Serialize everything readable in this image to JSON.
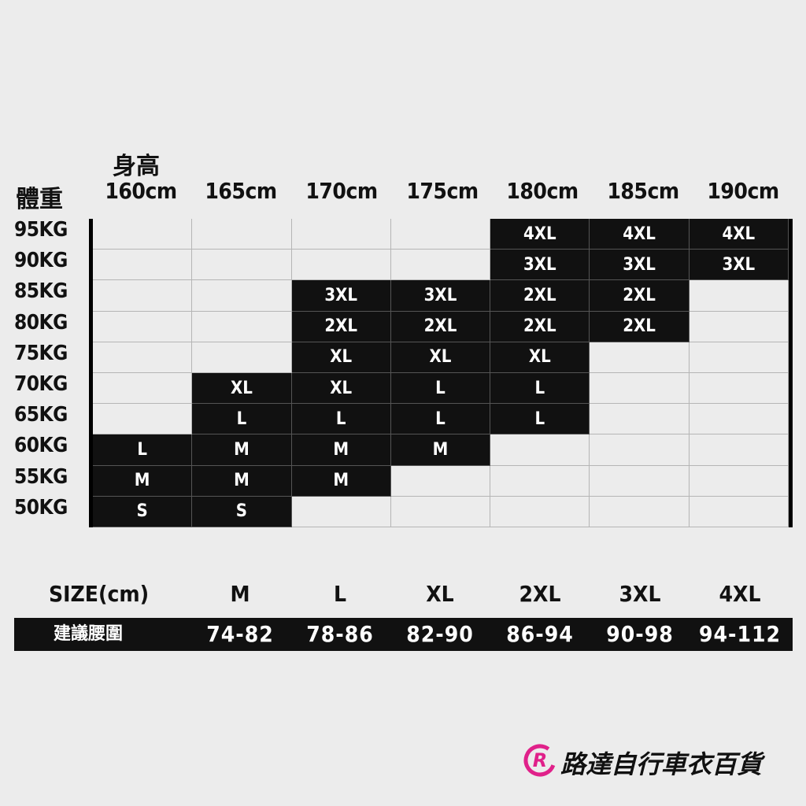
{
  "height_label": "身高",
  "weight_label": "體重",
  "heights": [
    "160cm",
    "165cm",
    "170cm",
    "175cm",
    "180cm",
    "185cm",
    "190cm"
  ],
  "weights": [
    "95KG",
    "90KG",
    "85KG",
    "80KG",
    "75KG",
    "70KG",
    "65KG",
    "60KG",
    "55KG",
    "50KG"
  ],
  "grid": [
    [
      "",
      "",
      "",
      "",
      "4XL",
      "4XL",
      "4XL"
    ],
    [
      "",
      "",
      "",
      "",
      "3XL",
      "3XL",
      "3XL"
    ],
    [
      "",
      "",
      "3XL",
      "3XL",
      "2XL",
      "2XL",
      ""
    ],
    [
      "",
      "",
      "2XL",
      "2XL",
      "2XL",
      "2XL",
      ""
    ],
    [
      "",
      "",
      "XL",
      "XL",
      "XL",
      "",
      ""
    ],
    [
      "",
      "XL",
      "XL",
      "L",
      "L",
      "",
      ""
    ],
    [
      "",
      "L",
      "L",
      "L",
      "L",
      "",
      ""
    ],
    [
      "L",
      "M",
      "M",
      "M",
      "",
      "",
      ""
    ],
    [
      "M",
      "M",
      "M",
      "",
      "",
      "",
      ""
    ],
    [
      "S",
      "S",
      "",
      "",
      "",
      "",
      ""
    ]
  ],
  "size_row": {
    "label": "SIZE(cm)",
    "sizes": [
      "M",
      "L",
      "XL",
      "2XL",
      "3XL",
      "4XL"
    ]
  },
  "waist_row": {
    "label": "建議腰圍",
    "values": [
      "74-82",
      "78-86",
      "82-90",
      "86-94",
      "90-98",
      "94-112"
    ]
  },
  "brand": {
    "name": "路達自行車衣百貨",
    "logo_letter": "R",
    "color": "#e0218a"
  }
}
